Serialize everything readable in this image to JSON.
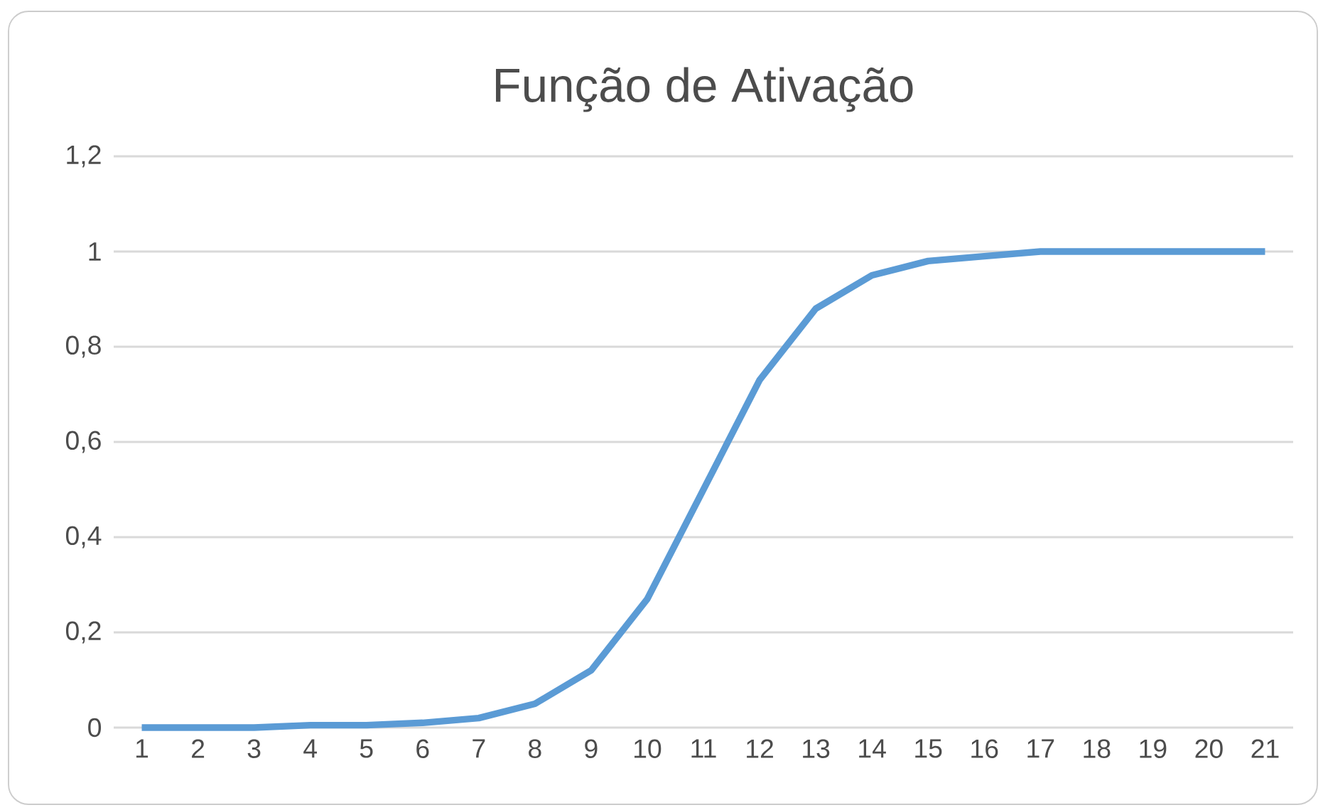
{
  "chart_data": {
    "type": "line",
    "title": "Função de Ativação",
    "categories": [
      "1",
      "2",
      "3",
      "4",
      "5",
      "6",
      "7",
      "8",
      "9",
      "10",
      "11",
      "12",
      "13",
      "14",
      "15",
      "16",
      "17",
      "18",
      "19",
      "20",
      "21"
    ],
    "values": [
      0,
      0,
      0,
      0.005,
      0.005,
      0.01,
      0.02,
      0.05,
      0.12,
      0.27,
      0.5,
      0.73,
      0.88,
      0.95,
      0.98,
      0.99,
      1,
      1,
      1,
      1,
      1
    ],
    "color": "#5b9bd5",
    "ylim": [
      0,
      1.2
    ],
    "yticks": [
      0,
      {
        "value": 0.2,
        "label": "0,2"
      },
      {
        "value": 0.4,
        "label": "0,4"
      },
      {
        "value": 0.6,
        "label": "0,6"
      },
      {
        "value": 0.8,
        "label": "0,8"
      },
      1,
      {
        "value": 1.2,
        "label": "1,2"
      }
    ],
    "grid": "y"
  }
}
